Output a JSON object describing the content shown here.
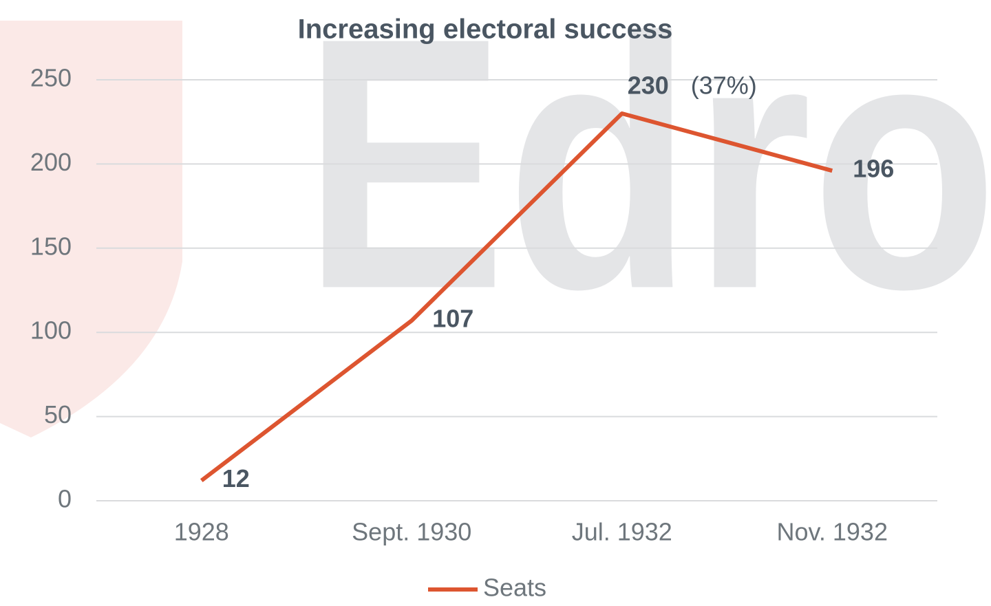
{
  "chart_data": {
    "type": "line",
    "title": "Increasing electoral success",
    "watermark": "Edro",
    "categories": [
      "1928",
      "Sept. 1930",
      "Jul. 1932",
      "Nov. 1932"
    ],
    "series": [
      {
        "name": "Seats",
        "color": "#dd5530",
        "values": [
          12,
          107,
          230,
          196
        ]
      }
    ],
    "annotations": [
      "(37%)"
    ],
    "ylim": [
      0,
      250
    ],
    "yticks": [
      0,
      50,
      100,
      150,
      200,
      250
    ],
    "grid": true,
    "legend": "bottom"
  }
}
